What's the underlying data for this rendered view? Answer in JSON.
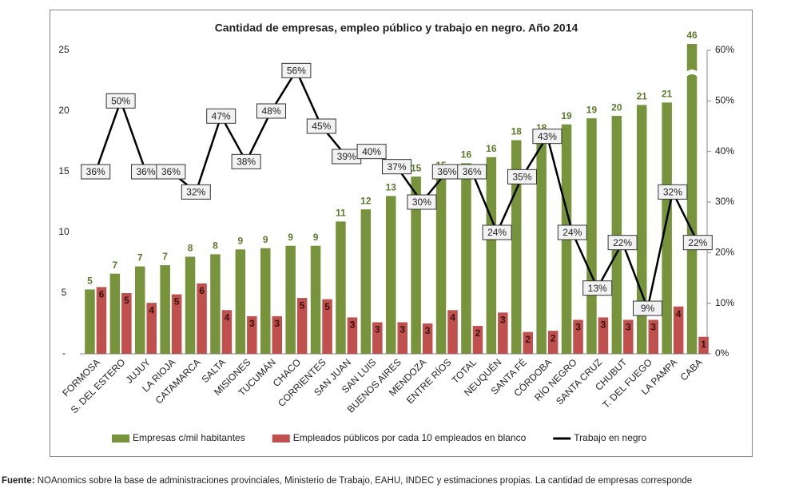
{
  "chart_data": {
    "type": "bar_line",
    "title": "Cantidad de empresas, empleo público y trabajo en negro. Año 2014",
    "categories": [
      "FORMOSA",
      "S. DEL ESTERO",
      "JUJUY",
      "LA RIOJA",
      "CATAMARCA",
      "SALTA",
      "MISIONES",
      "TUCUMÁN",
      "CHACO",
      "CORRIENTES",
      "SAN JUAN",
      "SAN LUIS",
      "BUENOS AIRES",
      "MENDOZA",
      "ENTRE RÍOS",
      "TOTAL",
      "NEUQUÉN",
      "SANTA FÉ",
      "CÓRDOBA",
      "RÍO NEGRO",
      "SANTA CRUZ",
      "CHUBUT",
      "T. DEL FUEGO",
      "LA PAMPA",
      "CABA"
    ],
    "series": [
      {
        "name": "Empresas c/mil habitantes",
        "color": "#77933c",
        "type": "bar",
        "values": [
          5.3,
          6.6,
          7.2,
          7.3,
          8.0,
          8.2,
          8.6,
          8.7,
          8.9,
          8.9,
          10.9,
          11.9,
          13.0,
          14.6,
          14.8,
          15.7,
          16.2,
          17.6,
          17.9,
          18.9,
          19.4,
          19.6,
          20.5,
          20.7,
          46
        ],
        "value_labels": [
          "5",
          "7",
          "7",
          "7",
          "8",
          "8",
          "9",
          "9",
          "9",
          "9",
          "11",
          "12",
          "13",
          "15",
          "15",
          "16",
          "16",
          "18",
          "18",
          "19",
          "19",
          "20",
          "21",
          "21",
          "46"
        ]
      },
      {
        "name": "Empleados públicos por cada 10 empleados en blanco",
        "color": "#c0504d",
        "type": "bar",
        "values": [
          5.5,
          5.0,
          4.2,
          4.9,
          5.8,
          3.6,
          3.1,
          3.1,
          4.6,
          4.5,
          3.0,
          2.6,
          2.6,
          2.5,
          3.6,
          2.3,
          3.4,
          1.8,
          1.9,
          2.8,
          3.0,
          2.8,
          2.8,
          3.9,
          1.4
        ],
        "value_labels": [
          "6",
          "5",
          "4",
          "5",
          "6",
          "4",
          "3",
          "3",
          "5",
          "5",
          "3",
          "3",
          "3",
          "3",
          "4",
          "2",
          "3",
          "2",
          "2",
          "3",
          "3",
          "3",
          "3",
          "4",
          "1"
        ]
      },
      {
        "name": "Trabajo en negro",
        "color": "#000000",
        "type": "line",
        "axis": "y2",
        "values": [
          36,
          50,
          36,
          36,
          32,
          47,
          38,
          48,
          56,
          45,
          39,
          40,
          37,
          30,
          36,
          36,
          24,
          35,
          43,
          24,
          13,
          22,
          9,
          32,
          22
        ],
        "value_labels": [
          "36%",
          "50%",
          "36%",
          "36%",
          "32%",
          "47%",
          "38%",
          "48%",
          "56%",
          "45%",
          "39%",
          "40%",
          "37%",
          "30%",
          "36%",
          "36%",
          "24%",
          "35%",
          "43%",
          "24%",
          "13%",
          "22%",
          "9%",
          "32%",
          "22%"
        ]
      }
    ],
    "ylim": [
      0,
      25
    ],
    "yticks": [
      {
        "value": 0,
        "label": "-"
      },
      5,
      10,
      15,
      20,
      25
    ],
    "y2lim": [
      0,
      60
    ],
    "y2ticks": [
      {
        "value": 0,
        "label": "0%"
      },
      {
        "value": 10,
        "label": "10%"
      },
      {
        "value": 20,
        "label": "20%"
      },
      {
        "value": 30,
        "label": "30%"
      },
      {
        "value": 40,
        "label": "40%"
      },
      {
        "value": 50,
        "label": "50%"
      },
      {
        "value": 60,
        "label": "60%"
      }
    ],
    "legend": "bottom"
  },
  "source": {
    "label": "Fuente:",
    "text": "NOAnomics sobre la base de administraciones provinciales, Ministerio de Trabajo, EAHU, INDEC y estimaciones propias. La cantidad de empresas corresponde"
  }
}
